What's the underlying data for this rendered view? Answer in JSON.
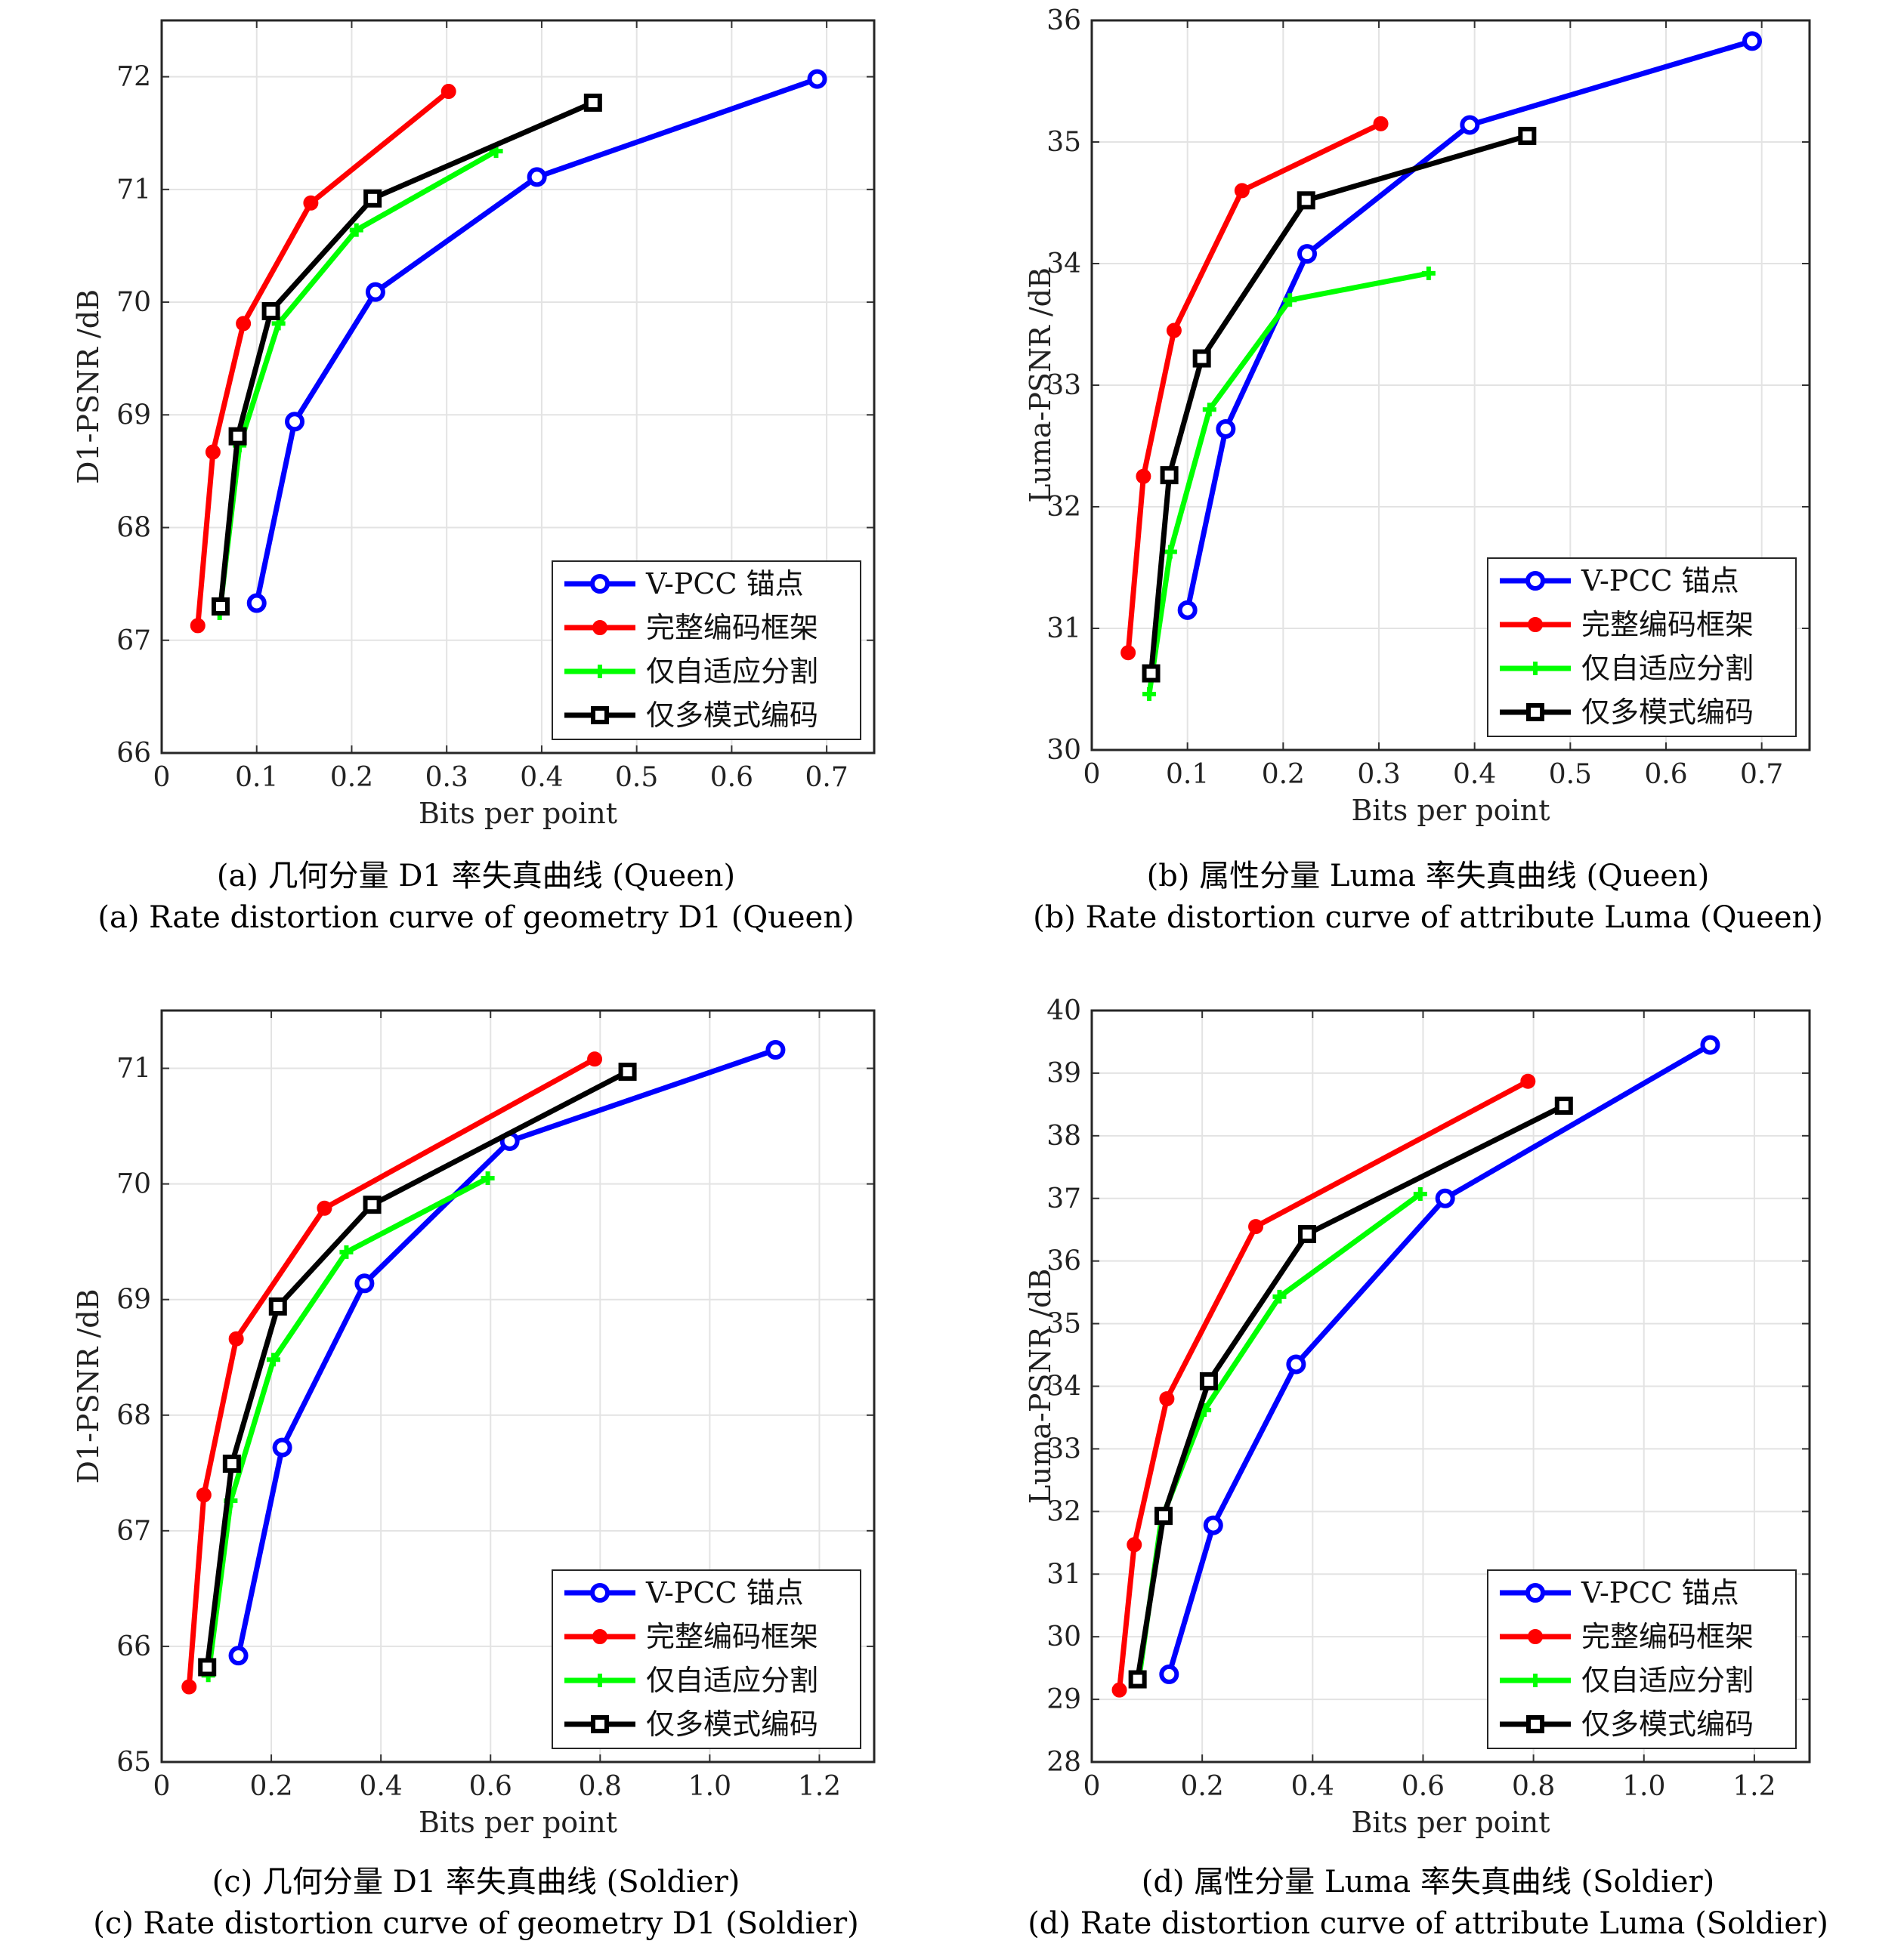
{
  "chart_data": [
    {
      "type": "line",
      "xlabel": "Bits per point",
      "ylabel": "D1-PSNR /dB",
      "xlim": [
        0,
        0.75
      ],
      "ylim": [
        66,
        72.5
      ],
      "xticks": [
        "0",
        "0.1",
        "0.2",
        "0.3",
        "0.4",
        "0.5",
        "0.6",
        "0.7"
      ],
      "yticks": [
        "66",
        "67",
        "68",
        "69",
        "70",
        "71",
        "72"
      ],
      "grid": true,
      "legend_position": "bottom-right",
      "caption_cn": "(a) 几何分量 D1 率失真曲线 (Queen)",
      "caption_en": "(a) Rate distortion curve of geometry D1 (Queen)",
      "series": [
        {
          "name": "V-PCC 锚点",
          "color": "#0000ff",
          "marker": "circle",
          "x": [
            0.1,
            0.14,
            0.225,
            0.395,
            0.69
          ],
          "y": [
            67.33,
            68.94,
            70.09,
            71.11,
            71.98
          ]
        },
        {
          "name": "完整编码框架",
          "color": "#ff0000",
          "marker": "dot",
          "x": [
            0.038,
            0.054,
            0.086,
            0.157,
            0.302
          ],
          "y": [
            67.13,
            68.67,
            69.81,
            70.88,
            71.87
          ]
        },
        {
          "name": "仅自适应分割",
          "color": "#00ff00",
          "marker": "plus",
          "x": [
            0.061,
            0.082,
            0.123,
            0.205,
            0.352
          ],
          "y": [
            67.24,
            68.73,
            69.81,
            70.64,
            71.34
          ]
        },
        {
          "name": "仅多模式编码",
          "color": "#000000",
          "marker": "square",
          "x": [
            0.062,
            0.08,
            0.115,
            0.222,
            0.454
          ],
          "y": [
            67.3,
            68.81,
            69.92,
            70.92,
            71.77
          ]
        }
      ]
    },
    {
      "type": "line",
      "xlabel": "Bits per point",
      "ylabel": "Luma-PSNR /dB",
      "xlim": [
        0,
        0.75
      ],
      "ylim": [
        30,
        36
      ],
      "xticks": [
        "0",
        "0.1",
        "0.2",
        "0.3",
        "0.4",
        "0.5",
        "0.6",
        "0.7"
      ],
      "yticks": [
        "30",
        "31",
        "32",
        "33",
        "34",
        "35",
        "36"
      ],
      "grid": true,
      "legend_position": "bottom-right",
      "caption_cn": "(b) 属性分量 Luma 率失真曲线 (Queen)",
      "caption_en": "(b) Rate distortion curve of attribute Luma (Queen)",
      "series": [
        {
          "name": "V-PCC 锚点",
          "color": "#0000ff",
          "marker": "circle",
          "x": [
            0.1,
            0.14,
            0.225,
            0.395,
            0.69
          ],
          "y": [
            31.15,
            32.64,
            34.08,
            35.14,
            35.83
          ]
        },
        {
          "name": "完整编码框架",
          "color": "#ff0000",
          "marker": "dot",
          "x": [
            0.038,
            0.054,
            0.086,
            0.157,
            0.302
          ],
          "y": [
            30.8,
            32.25,
            33.45,
            34.6,
            35.15
          ]
        },
        {
          "name": "仅自适应分割",
          "color": "#00ff00",
          "marker": "plus",
          "x": [
            0.06,
            0.082,
            0.123,
            0.207,
            0.352
          ],
          "y": [
            30.46,
            31.63,
            32.8,
            33.7,
            33.92
          ]
        },
        {
          "name": "仅多模式编码",
          "color": "#000000",
          "marker": "square",
          "x": [
            0.062,
            0.081,
            0.115,
            0.224,
            0.455
          ],
          "y": [
            30.63,
            32.26,
            33.22,
            34.52,
            35.05
          ]
        }
      ]
    },
    {
      "type": "line",
      "xlabel": "Bits per point",
      "ylabel": "D1-PSNR /dB",
      "xlim": [
        0,
        1.3
      ],
      "ylim": [
        65,
        71.5
      ],
      "xticks": [
        "0",
        "0.2",
        "0.4",
        "0.6",
        "0.8",
        "1.0",
        "1.2"
      ],
      "yticks": [
        "65",
        "66",
        "67",
        "68",
        "69",
        "70",
        "71"
      ],
      "grid": true,
      "legend_position": "bottom-right",
      "caption_cn": "(c) 几何分量 D1 率失真曲线 (Soldier)",
      "caption_en": "(c) Rate distortion curve of geometry D1 (Soldier)",
      "series": [
        {
          "name": "V-PCC 锚点",
          "color": "#0000ff",
          "marker": "circle",
          "x": [
            0.14,
            0.22,
            0.37,
            0.635,
            1.12
          ],
          "y": [
            65.92,
            67.72,
            69.14,
            70.37,
            71.16
          ]
        },
        {
          "name": "完整编码框架",
          "color": "#ff0000",
          "marker": "dot",
          "x": [
            0.05,
            0.077,
            0.136,
            0.297,
            0.79
          ],
          "y": [
            65.65,
            67.31,
            68.66,
            69.79,
            71.08
          ]
        },
        {
          "name": "仅自适应分割",
          "color": "#00ff00",
          "marker": "plus",
          "x": [
            0.085,
            0.126,
            0.204,
            0.337,
            0.595
          ],
          "y": [
            65.75,
            67.26,
            68.48,
            69.41,
            70.05
          ]
        },
        {
          "name": "仅多模式编码",
          "color": "#000000",
          "marker": "square",
          "x": [
            0.083,
            0.128,
            0.212,
            0.384,
            0.85
          ],
          "y": [
            65.82,
            67.58,
            68.94,
            69.82,
            70.97
          ]
        }
      ]
    },
    {
      "type": "line",
      "xlabel": "Bits per point",
      "ylabel": "Luma-PSNR /dB",
      "xlim": [
        0,
        1.3
      ],
      "ylim": [
        28,
        40
      ],
      "xticks": [
        "0",
        "0.2",
        "0.4",
        "0.6",
        "0.8",
        "1.0",
        "1.2"
      ],
      "yticks": [
        "28",
        "29",
        "30",
        "31",
        "32",
        "33",
        "34",
        "35",
        "36",
        "37",
        "38",
        "39",
        "40"
      ],
      "grid": true,
      "legend_position": "bottom-right",
      "caption_cn": "(d) 属性分量 Luma 率失真曲线 (Soldier)",
      "caption_en": "(d) Rate distortion curve of attribute Luma (Soldier)",
      "series": [
        {
          "name": "V-PCC 锚点",
          "color": "#0000ff",
          "marker": "circle",
          "x": [
            0.14,
            0.22,
            0.37,
            0.64,
            1.12
          ],
          "y": [
            29.4,
            31.78,
            34.35,
            37.0,
            39.45
          ]
        },
        {
          "name": "完整编码框架",
          "color": "#ff0000",
          "marker": "dot",
          "x": [
            0.05,
            0.077,
            0.136,
            0.297,
            0.79
          ],
          "y": [
            29.15,
            31.47,
            33.8,
            36.55,
            38.87
          ]
        },
        {
          "name": "仅自适应分割",
          "color": "#00ff00",
          "marker": "plus",
          "x": [
            0.085,
            0.126,
            0.204,
            0.34,
            0.595
          ],
          "y": [
            29.3,
            31.87,
            33.62,
            35.43,
            37.07
          ]
        },
        {
          "name": "仅多模式编码",
          "color": "#000000",
          "marker": "square",
          "x": [
            0.083,
            0.13,
            0.212,
            0.39,
            0.855
          ],
          "y": [
            29.32,
            31.93,
            34.08,
            36.43,
            38.48
          ]
        }
      ]
    }
  ]
}
